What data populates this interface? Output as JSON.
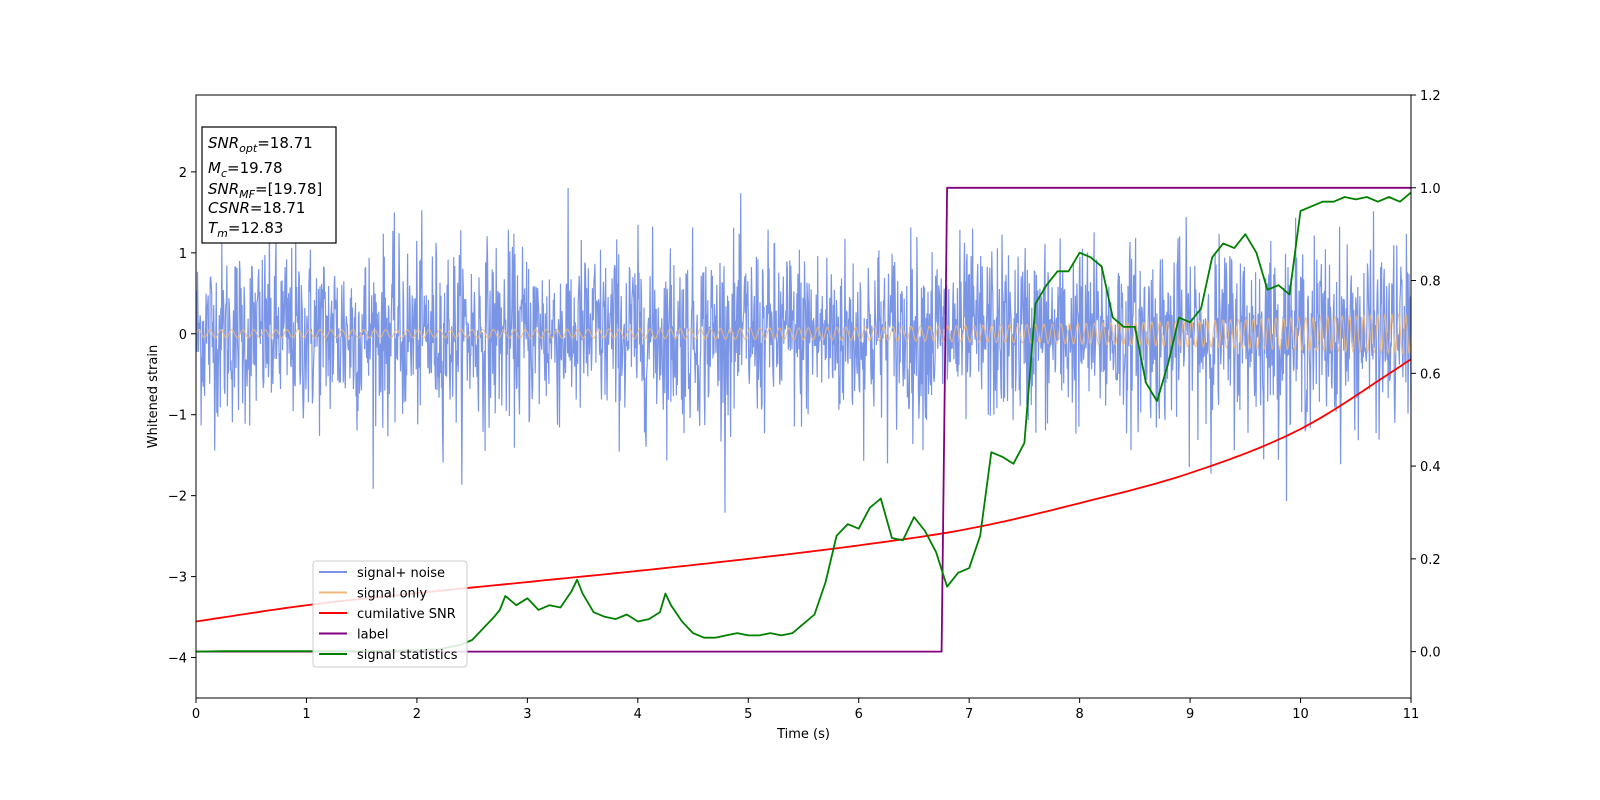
{
  "chart_data": {
    "type": "line",
    "xlabel": "Time (s)",
    "ylabel": "Whitened strain",
    "xlim": [
      0,
      11
    ],
    "ylim_left": [
      -4.5,
      2.95
    ],
    "ylim_right": [
      -0.1,
      1.2
    ],
    "x_ticks": [
      "0",
      "1",
      "2",
      "3",
      "4",
      "5",
      "6",
      "7",
      "8",
      "9",
      "10",
      "11"
    ],
    "y_left_ticks": [
      "−4",
      "−3",
      "−2",
      "−1",
      "0",
      "1",
      "2"
    ],
    "y_right_ticks": [
      "0.0",
      "0.2",
      "0.4",
      "0.6",
      "0.8",
      "1.0",
      "1.2"
    ],
    "grid": false,
    "legend_position": "lower-left",
    "info_box": {
      "lines": [
        {
          "var": "SNR",
          "sub": "opt",
          "value": "=18.71"
        },
        {
          "var": "M",
          "sub": "c",
          "value": "=19.78"
        },
        {
          "var": "SNR",
          "sub": "MF",
          "value": "=[19.78]"
        },
        {
          "var": "CSNR",
          "sub": "",
          "value": "=18.71"
        },
        {
          "var": "T",
          "sub": "m",
          "value": "=12.83"
        }
      ]
    },
    "series": [
      {
        "name": "signal+ noise",
        "axis": "left",
        "color": "#7b95e6",
        "noise_std": 0.55,
        "peak_range": [
          -2.4,
          2.2
        ],
        "x_range": [
          0,
          11
        ]
      },
      {
        "name": "signal only",
        "axis": "left",
        "color": "#f0b87a",
        "chirp": {
          "amplitude_start": 0.05,
          "amplitude_end": 0.25,
          "freq_start_hz": 10,
          "freq_end_hz": 16
        }
      },
      {
        "name": "cumilative SNR",
        "axis": "right",
        "color": "#ff0000",
        "x": [
          0,
          1,
          2,
          3,
          4,
          5,
          6,
          7,
          8,
          9,
          10,
          11
        ],
        "y": [
          0.065,
          0.1,
          0.126,
          0.15,
          0.174,
          0.2,
          0.229,
          0.265,
          0.32,
          0.385,
          0.48,
          0.63
        ]
      },
      {
        "name": "label",
        "axis": "right",
        "color": "#800080",
        "x": [
          0,
          6.75,
          6.8,
          11
        ],
        "y": [
          0,
          0,
          1,
          1
        ]
      },
      {
        "name": "signal statistics",
        "axis": "right",
        "color": "#008000",
        "x": [
          0,
          0.25,
          0.5,
          1.0,
          1.5,
          2.0,
          2.2,
          2.4,
          2.5,
          2.6,
          2.7,
          2.75,
          2.8,
          2.9,
          3.0,
          3.1,
          3.2,
          3.3,
          3.4,
          3.45,
          3.5,
          3.6,
          3.7,
          3.8,
          3.9,
          4.0,
          4.1,
          4.2,
          4.25,
          4.3,
          4.4,
          4.5,
          4.6,
          4.7,
          4.8,
          4.9,
          5.0,
          5.1,
          5.2,
          5.3,
          5.4,
          5.5,
          5.6,
          5.7,
          5.8,
          5.9,
          6.0,
          6.1,
          6.2,
          6.3,
          6.4,
          6.5,
          6.6,
          6.7,
          6.8,
          6.9,
          7.0,
          7.1,
          7.2,
          7.3,
          7.4,
          7.5,
          7.6,
          7.7,
          7.8,
          7.9,
          8.0,
          8.1,
          8.2,
          8.3,
          8.4,
          8.5,
          8.6,
          8.7,
          8.8,
          8.9,
          9.0,
          9.1,
          9.2,
          9.3,
          9.4,
          9.5,
          9.6,
          9.7,
          9.8,
          9.9,
          10.0,
          10.1,
          10.2,
          10.3,
          10.4,
          10.5,
          10.6,
          10.7,
          10.8,
          10.9,
          11.0
        ],
        "y": [
          0.0,
          0.001,
          0.001,
          0.001,
          0.001,
          0.003,
          0.005,
          0.015,
          0.025,
          0.05,
          0.075,
          0.09,
          0.12,
          0.1,
          0.115,
          0.09,
          0.1,
          0.095,
          0.13,
          0.155,
          0.125,
          0.085,
          0.075,
          0.07,
          0.08,
          0.065,
          0.07,
          0.085,
          0.125,
          0.1,
          0.065,
          0.04,
          0.03,
          0.03,
          0.035,
          0.04,
          0.035,
          0.035,
          0.04,
          0.035,
          0.04,
          0.06,
          0.08,
          0.15,
          0.25,
          0.275,
          0.265,
          0.31,
          0.33,
          0.245,
          0.24,
          0.29,
          0.26,
          0.215,
          0.14,
          0.17,
          0.18,
          0.25,
          0.43,
          0.42,
          0.405,
          0.45,
          0.75,
          0.79,
          0.82,
          0.82,
          0.86,
          0.85,
          0.83,
          0.72,
          0.7,
          0.7,
          0.58,
          0.54,
          0.62,
          0.72,
          0.71,
          0.74,
          0.85,
          0.88,
          0.87,
          0.9,
          0.86,
          0.78,
          0.79,
          0.77,
          0.95,
          0.96,
          0.97,
          0.97,
          0.98,
          0.975,
          0.98,
          0.97,
          0.98,
          0.97,
          0.99
        ]
      }
    ]
  }
}
